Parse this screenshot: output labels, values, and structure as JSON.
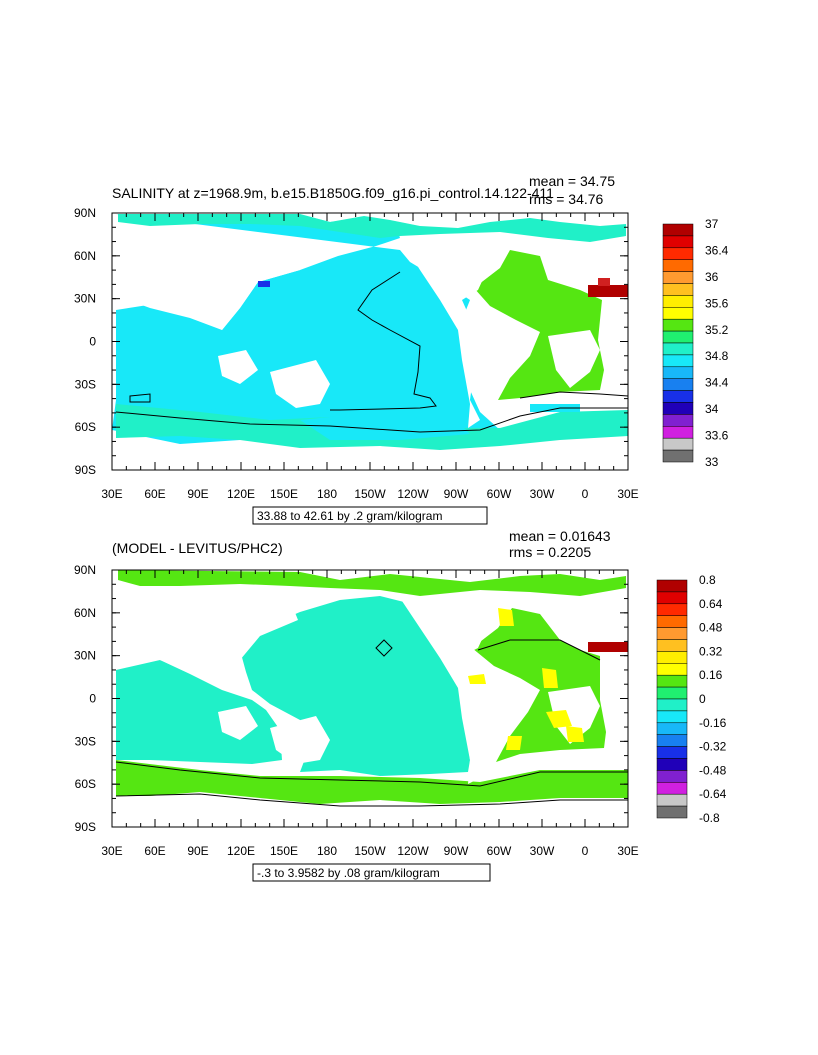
{
  "plots": [
    {
      "title": "SALINITY at z=1968.9m, b.e15.B1850G.f09_g16.pi_control.14.122-411",
      "mean_text": "mean = 34.75",
      "rms_text": "rms = 34.76",
      "contour_info": "33.88 to 42.61 by .2 gram/kilogram",
      "colorbar_labels": [
        "37",
        "36.4",
        "36",
        "35.6",
        "35.2",
        "34.8",
        "34.4",
        "34",
        "33.6",
        "33"
      ],
      "colorbar_colors": [
        "#b00000",
        "#e00000",
        "#ff2a00",
        "#ff6a00",
        "#ff9a30",
        "#ffc020",
        "#ffee00",
        "#ffff00",
        "#55e612",
        "#20f070",
        "#20f0c8",
        "#18e8f8",
        "#18b8f8",
        "#1880f0",
        "#1830e8",
        "#2000b8",
        "#8020d0",
        "#d020e0",
        "#c8c8c8",
        "#707070"
      ],
      "colors": {
        "ocean_main": "#18e8f8",
        "ocean_atl": "#55e612",
        "ocean_south": "#20f0c8",
        "ocean_arctic": "#20f0c8",
        "hot": "#b00000",
        "blue": "#1830e8"
      }
    },
    {
      "title": "(MODEL - LEVITUS/PHC2)",
      "mean_text": "mean = 0.01643",
      "rms_text": "rms = 0.2205",
      "contour_info": "-.3 to 3.9582 by .08 gram/kilogram",
      "colorbar_labels": [
        "0.8",
        "0.64",
        "0.48",
        "0.32",
        "0.16",
        "0",
        "-0.16",
        "-0.32",
        "-0.48",
        "-0.64",
        "-0.8"
      ],
      "colorbar_colors": [
        "#b00000",
        "#e00000",
        "#ff2a00",
        "#ff6a00",
        "#ff9a30",
        "#ffc020",
        "#ffee00",
        "#ffff00",
        "#55e612",
        "#20f070",
        "#20f0c8",
        "#18e8f8",
        "#18b8f8",
        "#1880f0",
        "#1830e8",
        "#2000b8",
        "#8020d0",
        "#d020e0",
        "#c8c8c8",
        "#707070"
      ],
      "colors": {
        "ocean_main": "#20f0c8",
        "ocean_atl": "#55e612",
        "ocean_south": "#55e612",
        "ocean_arctic": "#55e612",
        "hot": "#b00000",
        "yellow": "#ffff00"
      }
    }
  ],
  "axes": {
    "x_ticks": [
      "30E",
      "60E",
      "90E",
      "120E",
      "150E",
      "180",
      "150W",
      "120W",
      "90W",
      "60W",
      "30W",
      "0",
      "30E"
    ],
    "y_ticks": [
      "90N",
      "60N",
      "30N",
      "0",
      "30S",
      "60S",
      "90S"
    ]
  }
}
